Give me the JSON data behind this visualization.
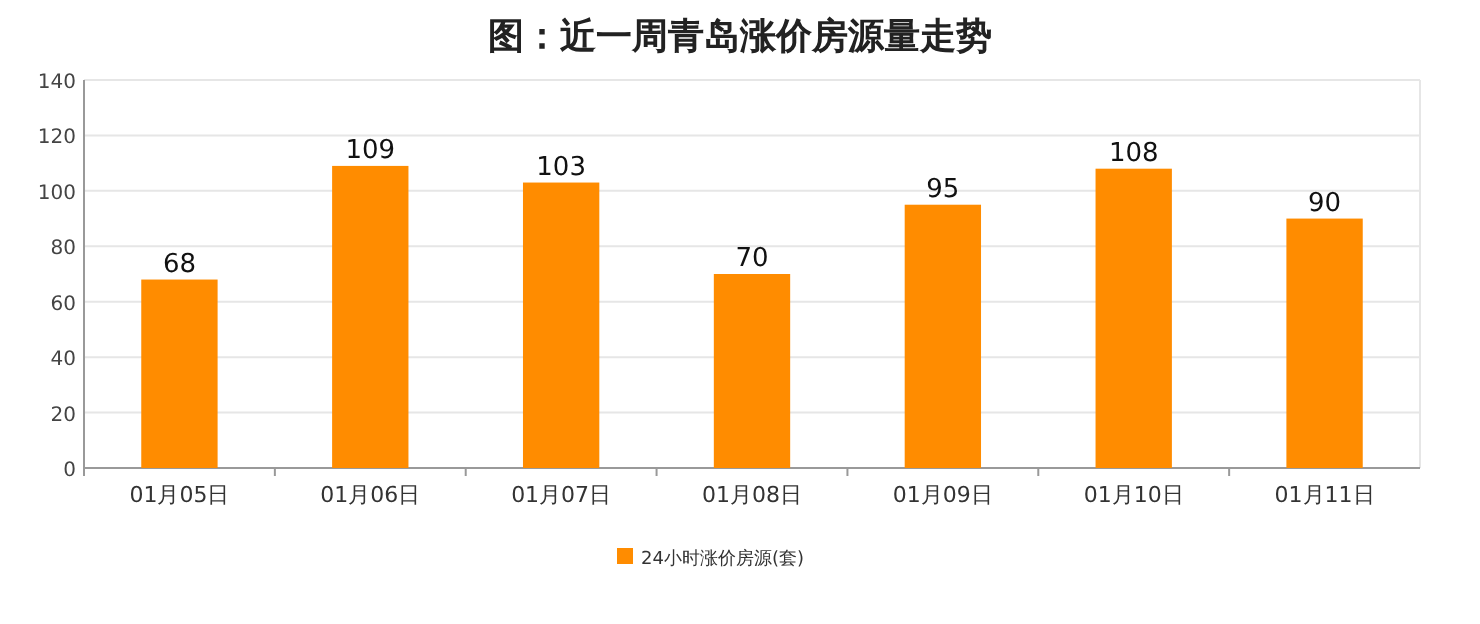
{
  "chart_data": {
    "type": "bar",
    "title": "图：近一周青岛涨价房源量走势",
    "categories": [
      "01月05日",
      "01月06日",
      "01月07日",
      "01月08日",
      "01月09日",
      "01月10日",
      "01月11日"
    ],
    "series": [
      {
        "name": "24小时涨价房源(套)",
        "color": "#ff8c00",
        "values": [
          68,
          109,
          103,
          70,
          95,
          108,
          90
        ]
      }
    ],
    "ylim": [
      0,
      140
    ],
    "yticks": [
      0,
      20,
      40,
      60,
      80,
      100,
      120,
      140
    ],
    "grid": "y",
    "legend": "bottom",
    "data_labels": true
  }
}
